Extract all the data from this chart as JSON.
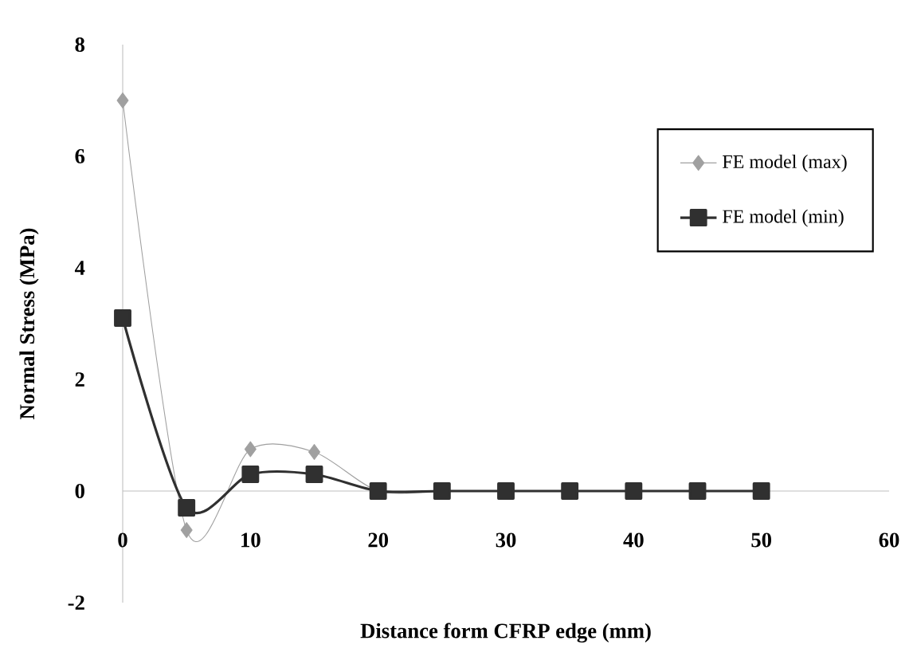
{
  "chart_data": {
    "type": "line",
    "xlabel": "Distance form CFRP  edge (mm)",
    "ylabel": "Normal Stress (MPa)",
    "x": [
      0,
      5,
      10,
      15,
      20,
      25,
      30,
      35,
      40,
      45,
      50
    ],
    "series": [
      {
        "name": "FE model (max)",
        "color": "#a0a0a0",
        "marker": "diamond",
        "values": [
          7.0,
          -0.7,
          0.75,
          0.7,
          0,
          0,
          0,
          0,
          0,
          0,
          0
        ]
      },
      {
        "name": "FE model (min)",
        "color": "#303030",
        "marker": "square",
        "values": [
          3.1,
          -0.3,
          0.3,
          0.3,
          0,
          0,
          0,
          0,
          0,
          0,
          0
        ]
      }
    ],
    "xlim": [
      0,
      60
    ],
    "xticks": [
      0,
      10,
      20,
      30,
      40,
      50,
      60
    ],
    "ylim": [
      -2,
      8
    ],
    "yticks": [
      -2,
      0,
      2,
      4,
      6,
      8
    ],
    "legend": "right",
    "line_style": "solid",
    "grid": false
  }
}
